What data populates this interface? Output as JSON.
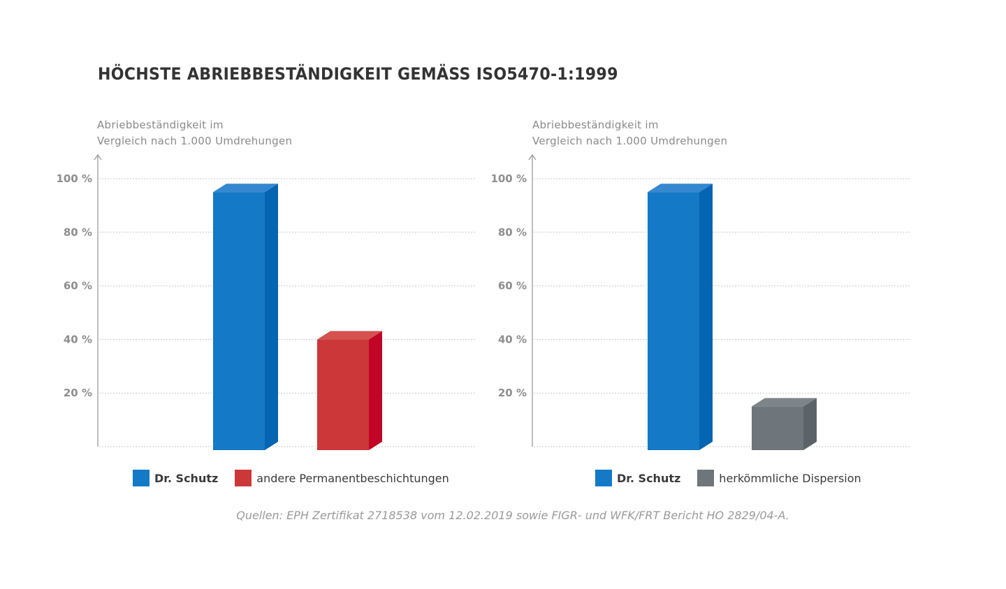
{
  "title": "HÖCHSTE ABRIEBBESTÄNDIGKEIT GEMÄSS ISO5470-1:1999",
  "source_note": "Quellen: EPH Zertifikat 2718538 vom 12.02.2019 sowie FIGR- und WFK/FRT Bericht HO 2829/04-A.",
  "colors": {
    "dr_schutz": "#1479c6",
    "dr_schutz_side": "#0565b3",
    "dr_schutz_top": "#3587cf",
    "andere": "#cc3739",
    "andere_side": "#c10526",
    "andere_top": "#d4514f",
    "dispersion": "#6e767b",
    "dispersion_side": "#5c6368",
    "dispersion_top": "#7d8589"
  },
  "chart_data": [
    {
      "type": "bar",
      "title": "HÖCHSTE ABRIEBBESTÄNDIGKEIT GEMÄSS ISO5470-1:1999",
      "ylabel": [
        "Abriebbeständigkeit im",
        "Vergleich nach 1.000 Umdrehungen"
      ],
      "xlabel": "",
      "ylim": [
        0,
        100
      ],
      "yticks": [
        20,
        40,
        60,
        80,
        100
      ],
      "ytick_labels": [
        "20 %",
        "40 %",
        "60 %",
        "80 %",
        "100 %"
      ],
      "grid": true,
      "categories": [
        "Dr. Schutz",
        "andere Permanentbeschichtungen"
      ],
      "values": [
        95,
        40
      ],
      "series_colors": [
        "dr_schutz",
        "andere"
      ],
      "legend": [
        {
          "label": "Dr. Schutz",
          "color": "dr_schutz",
          "bold": true
        },
        {
          "label": "andere Permanentbeschichtungen",
          "color": "andere",
          "bold": false
        }
      ],
      "legend_position": "bottom"
    },
    {
      "type": "bar",
      "ylabel": [
        "Abriebbeständigkeit im",
        "Vergleich nach 1.000 Umdrehungen"
      ],
      "xlabel": "",
      "ylim": [
        0,
        100
      ],
      "yticks": [
        20,
        40,
        60,
        80,
        100
      ],
      "ytick_labels": [
        "20 %",
        "40 %",
        "60 %",
        "80 %",
        "100 %"
      ],
      "grid": true,
      "categories": [
        "Dr. Schutz",
        "herkömmliche Dispersion"
      ],
      "values": [
        95,
        15
      ],
      "series_colors": [
        "dr_schutz",
        "dispersion"
      ],
      "legend": [
        {
          "label": "Dr. Schutz",
          "color": "dr_schutz",
          "bold": true
        },
        {
          "label": "herkömmliche Dispersion",
          "color": "dispersion",
          "bold": false
        }
      ],
      "legend_position": "bottom"
    }
  ]
}
